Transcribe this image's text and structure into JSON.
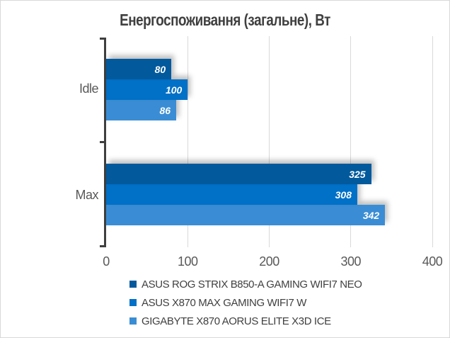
{
  "title": "Енергоспоживання (загальне), Вт",
  "chart_data": {
    "type": "bar",
    "orientation": "horizontal",
    "categories": [
      "Idle",
      "Max"
    ],
    "series": [
      {
        "name": "ASUS ROG STRIX B850-A GAMING WIFI7 NEO",
        "color": "#02599C",
        "values": [
          80,
          325
        ]
      },
      {
        "name": "ASUS X870 MAX GAMING WIFI7 W",
        "color": "#0170C7",
        "values": [
          100,
          308
        ]
      },
      {
        "name": "GIGABYTE X870 AORUS ELITE X3D ICE",
        "color": "#3A8DD4",
        "values": [
          86,
          342
        ]
      }
    ],
    "xlim": [
      0,
      400
    ],
    "xticks": [
      0,
      100,
      200,
      300,
      400
    ],
    "grid": "vertical",
    "legend_position": "bottom",
    "value_labels": "inside-end"
  },
  "colors": {
    "axis": "#3F3F3F",
    "gridline": "#D9D9D9",
    "tick_text": "#595959",
    "title_text": "#404040",
    "legend_text": "#404040",
    "value_label_text": "#FFFFFF",
    "background": "#FFFFFF",
    "border": "#D9D9D9"
  }
}
